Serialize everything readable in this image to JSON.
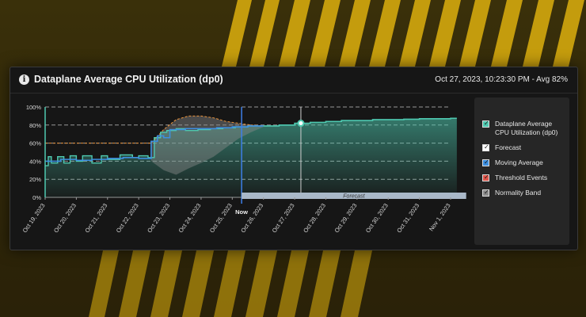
{
  "header": {
    "title": "Dataplane Average CPU Utilization (dp0)",
    "summary": "Oct 27, 2023, 10:23:30 PM - Avg 82%"
  },
  "forecast_label": "Forecast",
  "now_label": "Now",
  "legend": [
    {
      "label": "Dataplane Average CPU Utilization (dp0)",
      "color": "#4ec9b0"
    },
    {
      "label": "Forecast",
      "color": "#ffffff"
    },
    {
      "label": "Moving Average",
      "color": "#3d8fe0"
    },
    {
      "label": "Threshold Events",
      "color": "#e0564b"
    },
    {
      "label": "Normality Band",
      "color": "#8a8a8a"
    }
  ],
  "chart_data": {
    "type": "line",
    "title": "Dataplane Average CPU Utilization (dp0)",
    "ylim": [
      0,
      100
    ],
    "y_ticks": [
      "0%",
      "20%",
      "40%",
      "60%",
      "80%",
      "100%"
    ],
    "x_ticks": [
      "Oct 19, 2023",
      "Oct 20, 2023",
      "Oct 21, 2023",
      "Oct 22, 2023",
      "Oct 23, 2023",
      "Oct 24, 2023",
      "Oct 25, 2023",
      "Oct 26, 2023",
      "Oct 27, 2023",
      "Oct 28, 2023",
      "Oct 29, 2023",
      "Oct 30, 2023",
      "Oct 31, 2023",
      "Nov 1, 2023"
    ],
    "grid": true,
    "legend_position": "right",
    "series": [
      {
        "name": "Dataplane Average CPU Utilization (dp0)",
        "x": [
          0,
          0.1,
          0.2,
          0.4,
          0.6,
          0.8,
          1.0,
          1.2,
          1.5,
          1.8,
          2.0,
          2.4,
          2.8,
          3.0,
          3.3,
          3.5,
          3.7,
          3.8,
          3.9,
          4.2,
          4.5,
          4.9,
          5.3,
          5.7,
          6.1,
          6.5,
          6.9,
          7.0
        ],
        "values": [
          35,
          45,
          38,
          45,
          38,
          46,
          40,
          46,
          38,
          46,
          42,
          47,
          44,
          46,
          44,
          66,
          72,
          72,
          74,
          76,
          74,
          75,
          76,
          77,
          78,
          79,
          79,
          79
        ]
      },
      {
        "name": "Forecast",
        "x": [
          7.0,
          7.5,
          8.0,
          8.5,
          9.0,
          9.5,
          10.0,
          10.5,
          11.0,
          11.5,
          12.0,
          12.5,
          13.0,
          13.2
        ],
        "values": [
          79,
          80,
          82,
          83,
          84,
          85,
          85,
          86,
          86,
          86.5,
          87,
          87,
          87.5,
          87.5
        ]
      },
      {
        "name": "Moving Average",
        "x": [
          0,
          0.5,
          1.0,
          1.5,
          2.0,
          2.5,
          3.0,
          3.2,
          3.4,
          3.6,
          3.8,
          4.0,
          4.5,
          5.0,
          5.5,
          6.0,
          6.5,
          7.0
        ],
        "values": [
          40,
          42,
          41,
          42,
          43,
          44,
          43,
          43,
          62,
          68,
          66,
          75,
          76,
          76,
          77,
          78,
          79,
          79
        ]
      },
      {
        "name": "Normality Band",
        "x": [
          3.4,
          3.8,
          4.2,
          4.6,
          5.0,
          5.4,
          5.8,
          6.2,
          6.6,
          7.0
        ],
        "upper": [
          60,
          75,
          86,
          90,
          90,
          88,
          84,
          82,
          80,
          79
        ],
        "lower": [
          40,
          30,
          25,
          32,
          38,
          45,
          55,
          65,
          72,
          78
        ]
      }
    ],
    "threshold": {
      "value": 60
    }
  }
}
